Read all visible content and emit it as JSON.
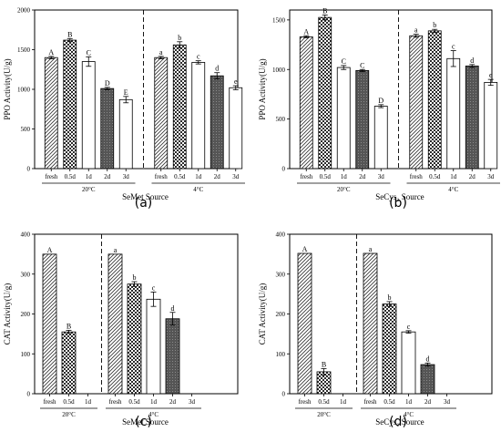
{
  "chart_data": [
    {
      "type": "bar",
      "panel": "(a)",
      "ylabel": "PPO Activity(U/g)",
      "xlabel": "SeMet Source",
      "ylim": [
        0,
        2000
      ],
      "yticks": [
        0,
        500,
        1000,
        1500,
        2000
      ],
      "groups": [
        {
          "label": "20°C",
          "categories": [
            "fresh",
            "0.5d",
            "1d",
            "2d",
            "3d"
          ],
          "values": [
            1400,
            1620,
            1350,
            1010,
            870
          ],
          "errors": [
            15,
            20,
            60,
            15,
            40
          ],
          "letters": [
            "A",
            "B",
            "C",
            "D",
            "E"
          ]
        },
        {
          "label": "4°C",
          "categories": [
            "fresh",
            "0.5d",
            "1d",
            "2d",
            "3d"
          ],
          "values": [
            1400,
            1560,
            1340,
            1170,
            1020
          ],
          "errors": [
            15,
            40,
            20,
            40,
            25
          ],
          "letters": [
            "a",
            "b",
            "c",
            "d",
            "e"
          ]
        }
      ]
    },
    {
      "type": "bar",
      "panel": "(b)",
      "ylabel": "PPO Activity(U/g)",
      "xlabel": "SeCys₂ Source",
      "ylim": [
        0,
        1600
      ],
      "yticks": [
        0,
        500,
        1000,
        1500
      ],
      "groups": [
        {
          "label": "20°C",
          "categories": [
            "fresh",
            "0.5d",
            "1d",
            "2d",
            "3d"
          ],
          "values": [
            1330,
            1525,
            1020,
            990,
            630
          ],
          "errors": [
            10,
            25,
            20,
            10,
            15
          ],
          "letters": [
            "A",
            "B",
            "C",
            "C",
            "D"
          ]
        },
        {
          "label": "4°C",
          "categories": [
            "fresh",
            "0.5d",
            "1d",
            "2d",
            "3d"
          ],
          "values": [
            1340,
            1390,
            1110,
            1035,
            870
          ],
          "errors": [
            15,
            15,
            80,
            15,
            30
          ],
          "letters": [
            "a",
            "b",
            "c",
            "d",
            "e"
          ]
        }
      ]
    },
    {
      "type": "bar",
      "panel": "(c)",
      "ylabel": "CAT Activity(U/g)",
      "xlabel": "SeMet Source",
      "ylim": [
        0,
        400
      ],
      "yticks": [
        0,
        100,
        200,
        300,
        400
      ],
      "groups": [
        {
          "label": "20°C",
          "categories": [
            "fresh",
            "0.5d",
            "1d"
          ],
          "values": [
            350,
            155,
            null
          ],
          "errors": [
            0,
            4,
            0
          ],
          "letters": [
            "A",
            "B",
            ""
          ]
        },
        {
          "label": "4°C",
          "categories": [
            "fresh",
            "0.5d",
            "1d",
            "2d",
            "3d"
          ],
          "values": [
            350,
            275,
            237,
            188,
            null
          ],
          "errors": [
            0,
            6,
            18,
            16,
            0
          ],
          "letters": [
            "a",
            "b",
            "c",
            "d",
            ""
          ]
        }
      ]
    },
    {
      "type": "bar",
      "panel": "(d)",
      "ylabel": "CAT Activity(U/g)",
      "xlabel": "SeCys₂ Source",
      "ylim": [
        0,
        400
      ],
      "yticks": [
        0,
        100,
        200,
        300,
        400
      ],
      "groups": [
        {
          "label": "20°C",
          "categories": [
            "fresh",
            "0.5d",
            "1d"
          ],
          "values": [
            352,
            55,
            null
          ],
          "errors": [
            0,
            8,
            0
          ],
          "letters": [
            "A",
            "B",
            ""
          ]
        },
        {
          "label": "4°C",
          "categories": [
            "fresh",
            "0.5d",
            "1d",
            "2d",
            "3d"
          ],
          "values": [
            352,
            225,
            155,
            73,
            null
          ],
          "errors": [
            0,
            6,
            3,
            4,
            0
          ],
          "letters": [
            "a",
            "b",
            "c",
            "d",
            ""
          ]
        }
      ]
    }
  ],
  "bar_styles": [
    "hatch",
    "checker",
    "plain",
    "dark",
    "plain"
  ]
}
